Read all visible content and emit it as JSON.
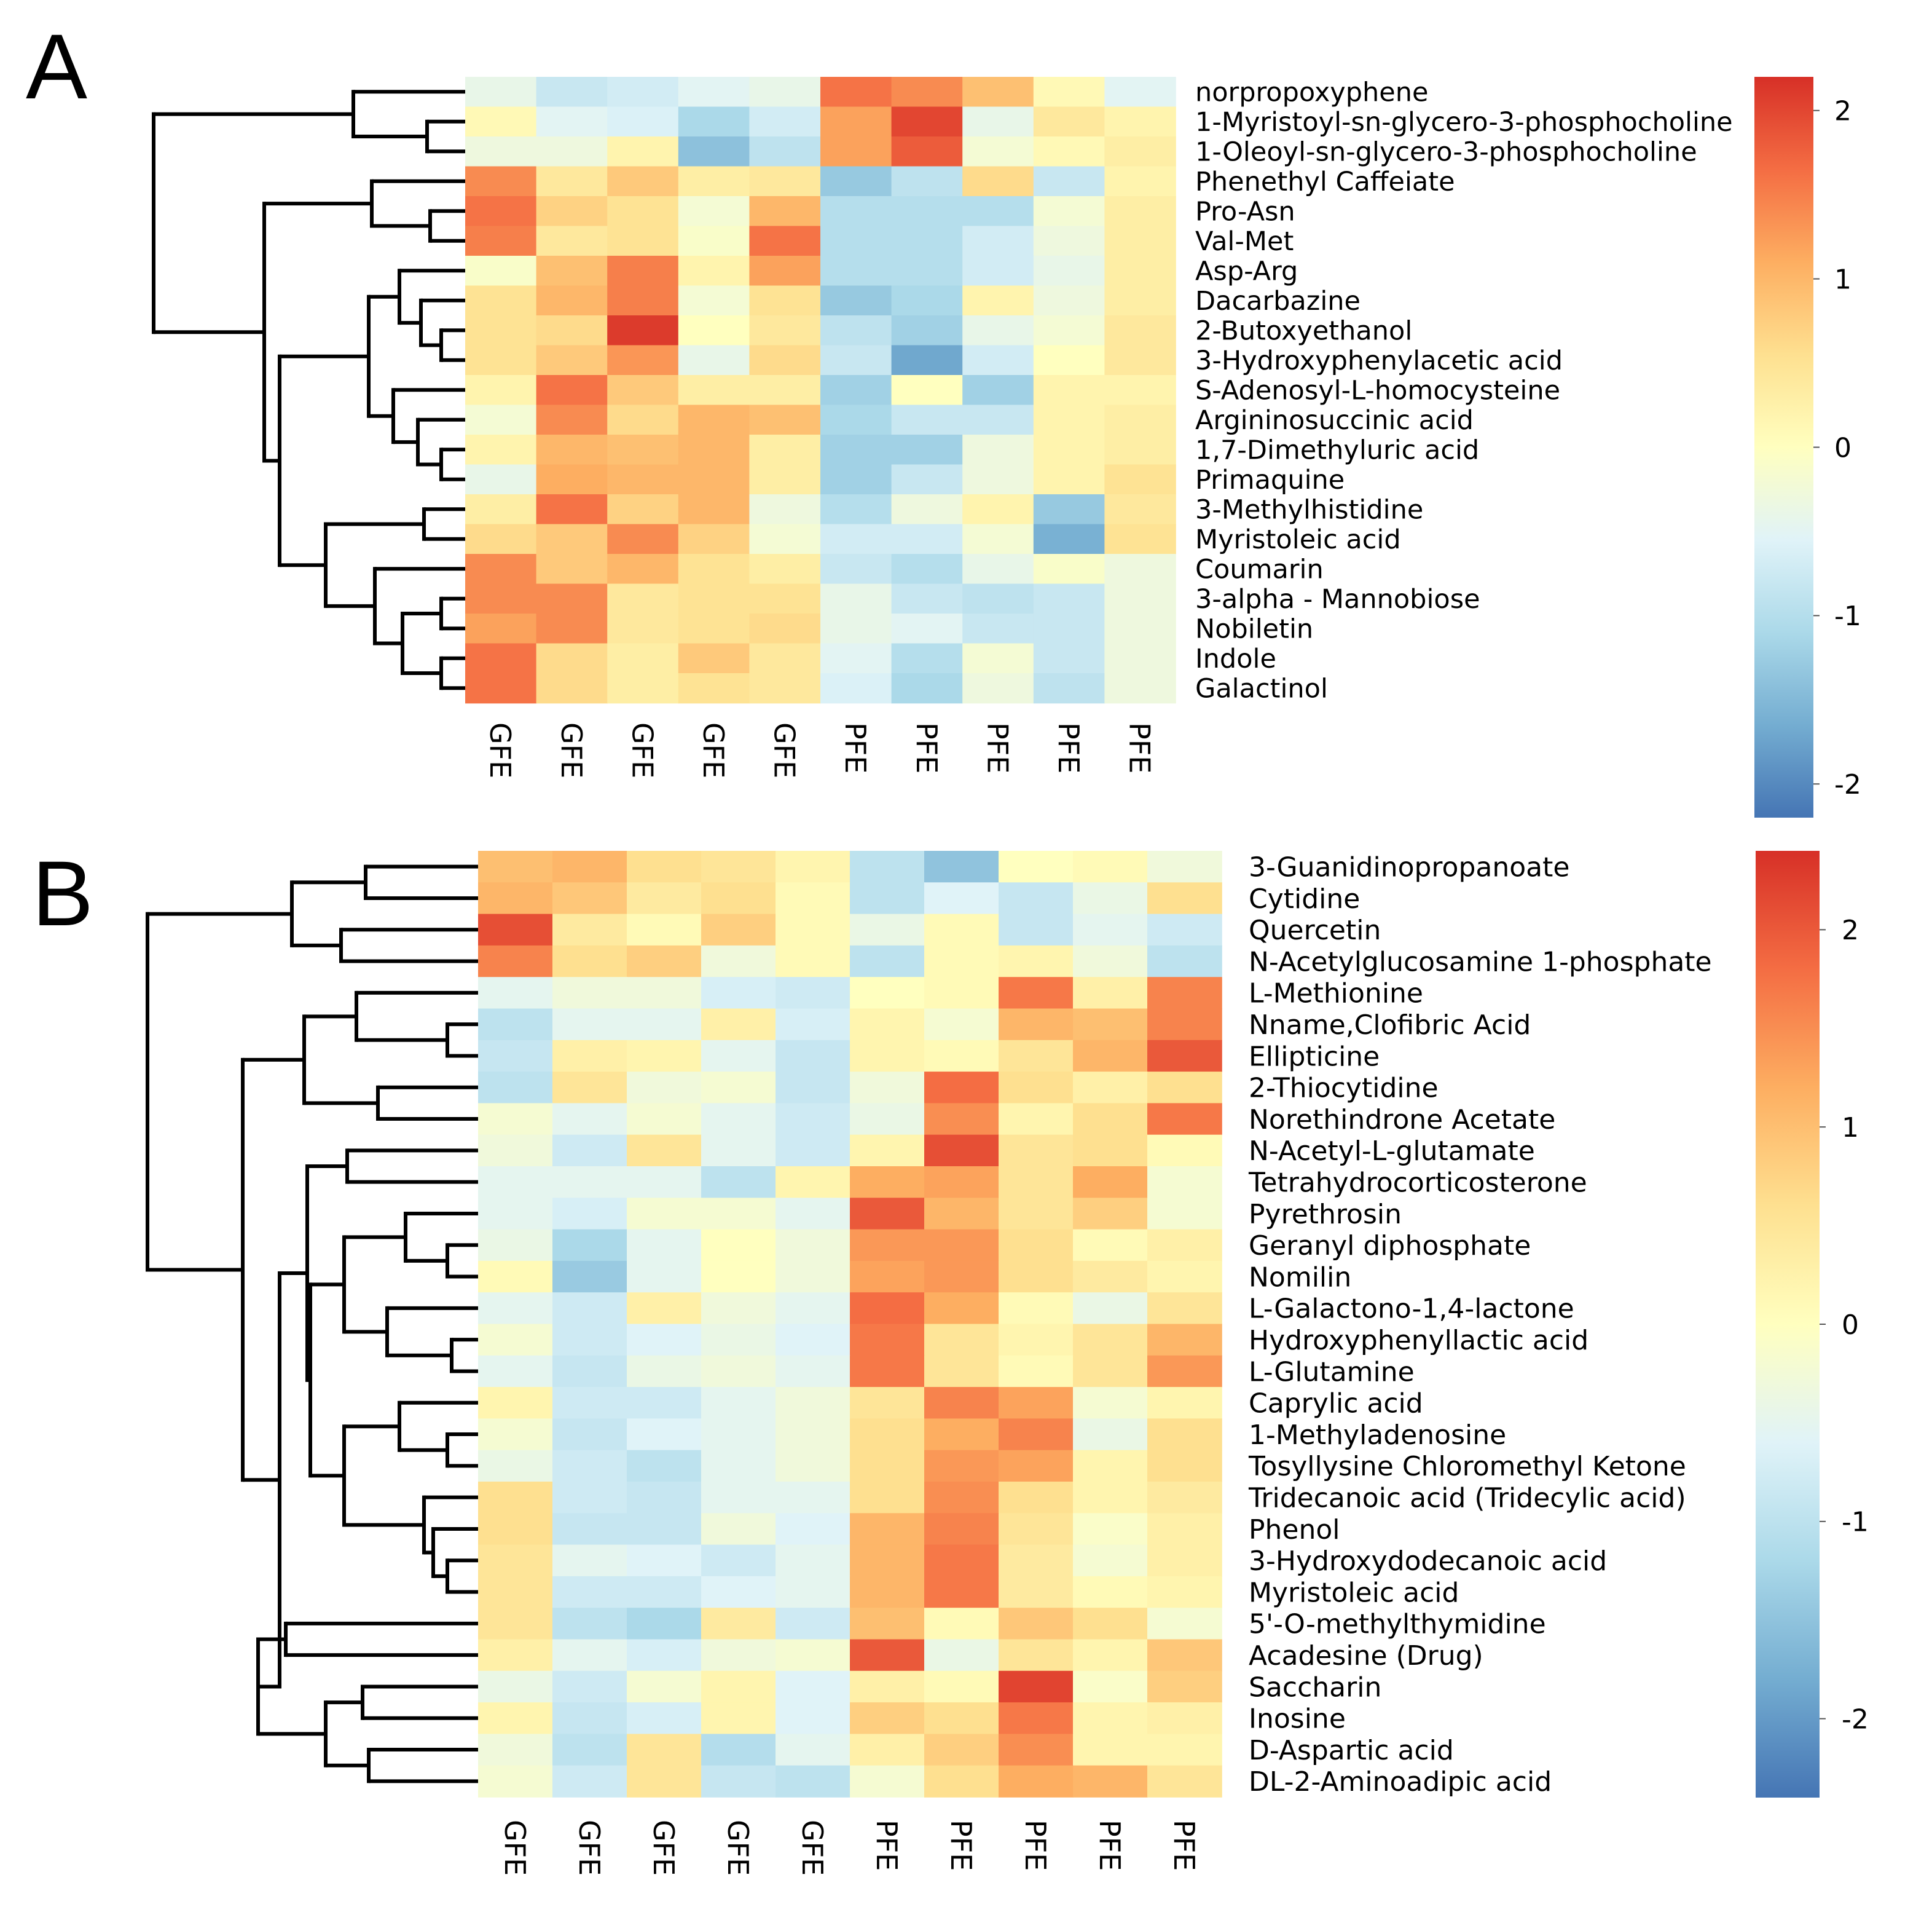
{
  "colors": {
    "scale": [
      "#4575b4",
      "#74add1",
      "#abd9e9",
      "#e0f3f8",
      "#ffffbf",
      "#fee090",
      "#fdae61",
      "#f46d43",
      "#d73027"
    ],
    "dendrogram": "#000000"
  },
  "chart_data": [
    {
      "type": "heatmap",
      "panel": "A",
      "columns": [
        "GFE",
        "GFE",
        "GFE",
        "GFE",
        "GFE",
        "PFE",
        "PFE",
        "PFE",
        "PFE",
        "PFE"
      ],
      "rows": [
        "norpropoxyphene",
        "1-Myristoyl-sn-glycero-3-phosphocholine",
        "1-Oleoyl-sn-glycero-3-phosphocholine",
        "Phenethyl Caffeiate",
        "Pro-Asn",
        "Val-Met",
        "Asp-Arg",
        "Dacarbazine",
        "2-Butoxyethanol",
        "3-Hydroxyphenylacetic acid",
        "S-Adenosyl-L-homocysteine",
        "Argininosuccinic acid",
        "1,7-Dimethyluric acid",
        "Primaquine",
        "3-Methylhistidine",
        "Myristoleic acid",
        "Coumarin",
        "3-alpha - Mannobiose",
        "Nobiletin",
        "Indole",
        "Galactinol"
      ],
      "values": [
        [
          -0.4,
          -0.8,
          -0.7,
          -0.5,
          -0.4,
          1.6,
          1.4,
          0.9,
          0.1,
          -0.5
        ],
        [
          0.1,
          -0.5,
          -0.6,
          -1.1,
          -0.7,
          1.2,
          2.0,
          -0.4,
          0.4,
          0.2
        ],
        [
          -0.3,
          -0.3,
          0.2,
          -1.4,
          -0.9,
          1.2,
          1.8,
          -0.2,
          0.1,
          0.3
        ],
        [
          1.4,
          0.4,
          0.8,
          0.3,
          0.4,
          -1.3,
          -0.9,
          0.6,
          -0.8,
          0.2
        ],
        [
          1.6,
          0.7,
          0.5,
          -0.2,
          1.0,
          -1.0,
          -1.0,
          -1.0,
          -0.2,
          0.3
        ],
        [
          1.5,
          0.4,
          0.5,
          -0.1,
          1.6,
          -1.0,
          -1.0,
          -0.7,
          -0.3,
          0.3
        ],
        [
          -0.1,
          0.9,
          1.5,
          0.2,
          1.2,
          -1.0,
          -1.0,
          -0.7,
          -0.4,
          0.3
        ],
        [
          0.5,
          1.0,
          1.5,
          -0.2,
          0.5,
          -1.3,
          -1.1,
          0.2,
          -0.3,
          0.3
        ],
        [
          0.5,
          0.6,
          2.1,
          0.0,
          0.4,
          -0.9,
          -1.2,
          -0.4,
          -0.2,
          0.4
        ],
        [
          0.5,
          0.8,
          1.3,
          -0.4,
          0.6,
          -0.8,
          -1.7,
          -0.7,
          0.0,
          0.4
        ],
        [
          0.2,
          1.6,
          0.8,
          0.3,
          0.3,
          -1.2,
          0.0,
          -1.2,
          0.2,
          0.2
        ],
        [
          -0.2,
          1.4,
          0.6,
          1.0,
          0.9,
          -1.1,
          -0.8,
          -0.8,
          0.2,
          0.3
        ],
        [
          0.2,
          1.0,
          0.9,
          1.0,
          0.3,
          -1.2,
          -1.2,
          -0.3,
          0.2,
          0.3
        ],
        [
          -0.4,
          1.1,
          1.0,
          1.0,
          0.3,
          -1.2,
          -0.8,
          -0.3,
          0.2,
          0.5
        ],
        [
          0.3,
          1.6,
          0.7,
          1.0,
          -0.3,
          -1.0,
          -0.3,
          0.2,
          -1.3,
          0.4
        ],
        [
          0.6,
          0.8,
          1.4,
          0.7,
          -0.2,
          -0.7,
          -0.7,
          -0.2,
          -1.6,
          0.5
        ],
        [
          1.4,
          0.8,
          1.0,
          0.5,
          0.3,
          -0.8,
          -1.0,
          -0.4,
          -0.1,
          -0.3
        ],
        [
          1.4,
          1.4,
          0.4,
          0.5,
          0.5,
          -0.4,
          -0.8,
          -0.9,
          -0.8,
          -0.3
        ],
        [
          1.2,
          1.4,
          0.4,
          0.5,
          0.6,
          -0.4,
          -0.5,
          -0.8,
          -0.8,
          -0.3
        ],
        [
          1.6,
          0.6,
          0.3,
          0.8,
          0.4,
          -0.5,
          -1.0,
          -0.2,
          -0.8,
          -0.3
        ],
        [
          1.6,
          0.6,
          0.3,
          0.5,
          0.4,
          -0.6,
          -1.1,
          -0.3,
          -0.9,
          -0.3
        ]
      ],
      "colorbar": {
        "ticks": [
          2,
          1,
          0,
          -1,
          -2
        ],
        "tick_labels": [
          "2",
          "1",
          "0",
          "-1",
          "-2"
        ],
        "range": [
          -2.2,
          2.2
        ]
      }
    },
    {
      "type": "heatmap",
      "panel": "B",
      "columns": [
        "GFE",
        "GFE",
        "GFE",
        "GFE",
        "GFE",
        "PFE",
        "PFE",
        "PFE",
        "PFE",
        "PFE"
      ],
      "rows": [
        "3-Guanidinopropanoate",
        "Cytidine",
        "Quercetin",
        "N-Acetylglucosamine 1-phosphate",
        "L-Methionine",
        "Nname,Clofibric Acid",
        "Ellipticine",
        "2-Thiocytidine",
        "Norethindrone Acetate",
        "N-Acetyl-L-glutamate",
        "Tetrahydrocorticosterone",
        "Pyrethrosin",
        "Geranyl diphosphate",
        "Nomilin",
        "L-Galactono-1,4-lactone",
        "Hydroxyphenyllactic acid",
        "L-Glutamine",
        "Caprylic acid",
        "1-Methyladenosine",
        "Tosyllysine Chloromethyl Ketone",
        "Tridecanoic acid (Tridecylic acid)",
        "Phenol",
        "3-Hydroxydodecanoic acid",
        "Myristoleic acid",
        "5'-O-methylthymidine",
        "Acadesine (Drug)",
        "Saccharin",
        "Inosine",
        "D-Aspartic acid",
        "DL-2-Aminoadipic acid"
      ],
      "values": [
        [
          1.0,
          1.1,
          0.6,
          0.5,
          0.2,
          -1.0,
          -1.5,
          0.0,
          0.1,
          -0.3
        ],
        [
          1.1,
          0.9,
          0.4,
          0.6,
          0.1,
          -1.0,
          -0.6,
          -0.9,
          -0.4,
          0.6
        ],
        [
          2.1,
          0.4,
          0.1,
          0.8,
          0.1,
          -0.4,
          0.1,
          -0.9,
          -0.5,
          -0.8
        ],
        [
          1.6,
          0.6,
          0.8,
          -0.3,
          0.1,
          -1.0,
          0.1,
          0.2,
          -0.3,
          -1.0
        ],
        [
          -0.5,
          -0.3,
          -0.3,
          -0.7,
          -0.8,
          0.0,
          0.1,
          1.7,
          0.3,
          1.6
        ],
        [
          -1.0,
          -0.5,
          -0.5,
          0.3,
          -0.7,
          0.2,
          -0.2,
          1.1,
          1.0,
          1.6
        ],
        [
          -0.9,
          0.3,
          0.2,
          -0.5,
          -0.9,
          0.2,
          0.1,
          0.5,
          1.1,
          2.0
        ],
        [
          -1.0,
          0.5,
          -0.3,
          -0.2,
          -0.9,
          -0.3,
          1.8,
          0.6,
          0.3,
          0.6
        ],
        [
          -0.2,
          -0.5,
          -0.2,
          -0.5,
          -0.8,
          -0.4,
          1.5,
          0.2,
          0.6,
          1.7
        ],
        [
          -0.3,
          -0.8,
          0.5,
          -0.5,
          -0.8,
          0.2,
          2.1,
          0.5,
          0.6,
          0.1
        ],
        [
          -0.5,
          -0.5,
          -0.5,
          -1.0,
          0.2,
          1.2,
          1.3,
          0.5,
          1.2,
          -0.2
        ],
        [
          -0.5,
          -0.7,
          -0.2,
          -0.2,
          -0.5,
          2.0,
          1.1,
          0.5,
          0.8,
          -0.2
        ],
        [
          -0.4,
          -1.2,
          -0.5,
          0.0,
          -0.3,
          1.4,
          1.4,
          0.6,
          0.1,
          0.3
        ],
        [
          0.1,
          -1.4,
          -0.5,
          0.0,
          -0.3,
          1.3,
          1.4,
          0.6,
          0.4,
          0.2
        ],
        [
          -0.5,
          -0.8,
          0.3,
          -0.3,
          -0.5,
          1.8,
          1.2,
          0.1,
          -0.4,
          0.5
        ],
        [
          -0.2,
          -0.8,
          -0.6,
          -0.4,
          -0.6,
          1.7,
          0.5,
          0.2,
          0.5,
          1.1
        ],
        [
          -0.5,
          -0.9,
          -0.4,
          -0.3,
          -0.5,
          1.7,
          0.5,
          0.1,
          0.5,
          1.4
        ],
        [
          0.2,
          -0.8,
          -0.8,
          -0.5,
          -0.3,
          0.5,
          1.6,
          1.3,
          -0.2,
          0.2
        ],
        [
          -0.2,
          -0.9,
          -0.6,
          -0.5,
          -0.3,
          0.6,
          1.2,
          1.6,
          -0.4,
          0.6
        ],
        [
          -0.4,
          -0.8,
          -1.0,
          -0.5,
          -0.3,
          0.6,
          1.4,
          1.3,
          0.2,
          0.6
        ],
        [
          0.6,
          -0.8,
          -0.9,
          -0.5,
          -0.5,
          0.6,
          1.5,
          0.6,
          0.2,
          0.4
        ],
        [
          0.6,
          -0.9,
          -0.9,
          -0.3,
          -0.6,
          1.1,
          1.6,
          0.5,
          -0.1,
          0.3
        ],
        [
          0.5,
          -0.5,
          -0.6,
          -0.8,
          -0.5,
          1.1,
          1.7,
          0.4,
          -0.2,
          0.3
        ],
        [
          0.5,
          -0.8,
          -0.8,
          -0.6,
          -0.5,
          1.1,
          1.7,
          0.4,
          0.1,
          0.2
        ],
        [
          0.5,
          -1.0,
          -1.2,
          0.4,
          -0.8,
          1.0,
          0.1,
          0.9,
          0.6,
          -0.2
        ],
        [
          0.3,
          -0.5,
          -0.7,
          -0.3,
          -0.2,
          2.0,
          -0.4,
          0.5,
          0.2,
          0.9
        ],
        [
          -0.4,
          -0.8,
          -0.2,
          0.2,
          -0.6,
          0.3,
          0.1,
          2.2,
          -0.1,
          0.8
        ],
        [
          0.2,
          -0.9,
          -0.7,
          0.2,
          -0.6,
          0.8,
          0.6,
          1.7,
          0.2,
          0.3
        ],
        [
          -0.3,
          -1.0,
          0.5,
          -1.1,
          -0.5,
          0.3,
          0.8,
          1.5,
          0.2,
          0.2
        ],
        [
          -0.2,
          -0.8,
          0.5,
          -0.9,
          -1.0,
          -0.2,
          0.6,
          1.2,
          1.1,
          0.5
        ]
      ],
      "colorbar": {
        "ticks": [
          2,
          1,
          0,
          -1,
          -2
        ],
        "tick_labels": [
          "2",
          "1",
          "0",
          "-1",
          "-2"
        ],
        "range": [
          -2.4,
          2.4
        ]
      }
    }
  ]
}
